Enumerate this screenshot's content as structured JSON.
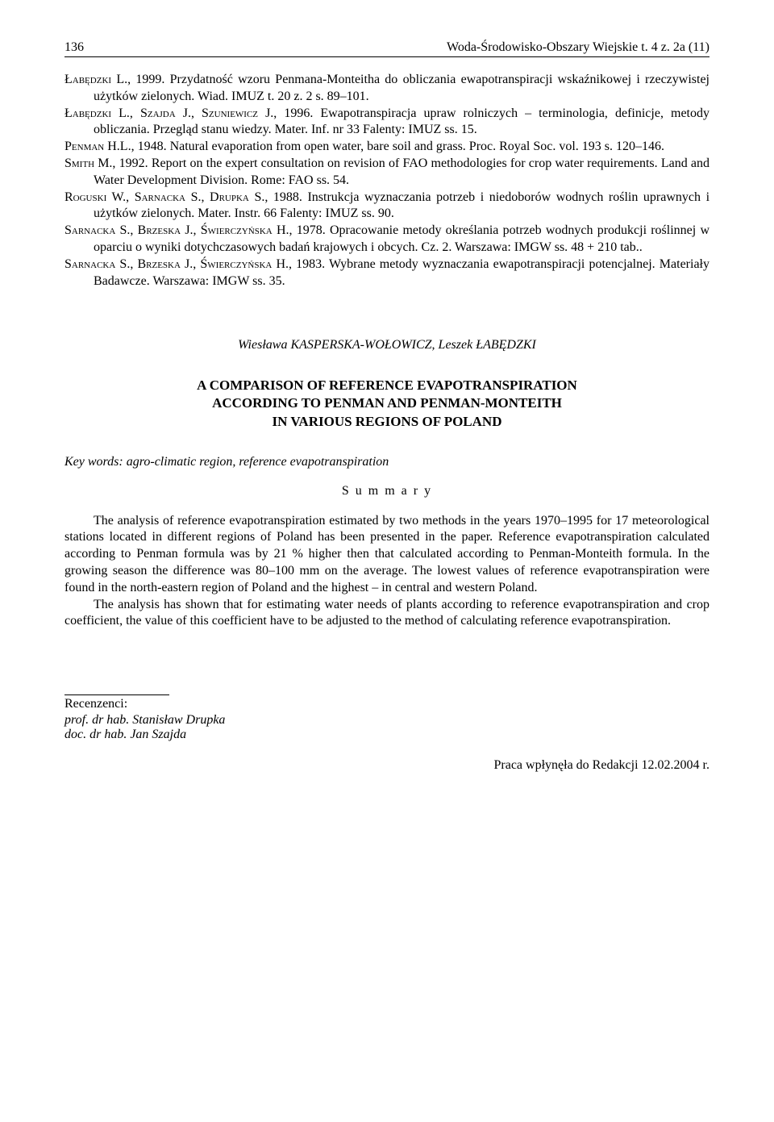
{
  "header": {
    "page_number": "136",
    "running_title": "Woda-Środowisko-Obszary Wiejskie t. 4 z. 2a (11)"
  },
  "references": [
    {
      "html": "Ł<span class='sc'>abędzki</span> L., 1999. Przydatność wzoru Penmana-Monteitha do obliczania ewapotranspiracji wskaźnikowej i rzeczywistej użytków zielonych. Wiad. IMUZ t. 20 z. 2 s. 89–101."
    },
    {
      "html": "Ł<span class='sc'>abędzki</span> L., S<span class='sc'>zajda</span> J., S<span class='sc'>zuniewicz</span> J., 1996. Ewapotranspiracja upraw rolniczych – terminologia, definicje, metody obliczania. Przegląd stanu wiedzy. Mater. Inf. nr 33 Falenty: IMUZ ss. 15."
    },
    {
      "html": "P<span class='sc'>enman</span> H.L., 1948. Natural evaporation from open water, bare soil and grass. Proc. Royal Soc. vol. 193 s. 120–146."
    },
    {
      "html": "S<span class='sc'>mith</span> M., 1992. Report on the expert consultation on revision of FAO methodologies for crop water requirements. Land and Water Development Division. Rome: FAO ss. 54."
    },
    {
      "html": "R<span class='sc'>oguski</span> W., S<span class='sc'>arnacka</span> S., D<span class='sc'>rupka</span> S., 1988. Instrukcja wyznaczania potrzeb i niedoborów wodnych roślin uprawnych i użytków zielonych. Mater. Instr. 66 Falenty: IMUZ ss. 90."
    },
    {
      "html": "S<span class='sc'>arnacka</span> S., B<span class='sc'>rzeska</span> J., Ś<span class='sc'>wierczyńska</span> H., 1978. Opracowanie metody określania potrzeb wodnych produkcji roślinnej w oparciu o wyniki dotychczasowych badań krajowych i obcych. Cz. 2. Warszawa: IMGW ss. 48 + 210 tab.."
    },
    {
      "html": "S<span class='sc'>arnacka</span> S., B<span class='sc'>rzeska</span> J., Ś<span class='sc'>wierczyńska</span> H., 1983. Wybrane metody wyznaczania ewapotranspiracji potencjalnej. Materiały Badawcze. Warszawa: IMGW ss. 35."
    }
  ],
  "article": {
    "authors": "Wiesława KASPERSKA-WOŁOWICZ, Leszek ŁABĘDZKI",
    "title_lines": [
      "A COMPARISON OF REFERENCE EVAPOTRANSPIRATION",
      "ACCORDING TO PENMAN AND PENMAN-MONTEITH",
      "IN VARIOUS REGIONS OF POLAND"
    ],
    "keywords_label": "Key words:",
    "keywords_text": " agro-climatic region, reference evapotranspiration",
    "summary_label": "S u m m a r y",
    "summary_paragraphs": [
      "The analysis of reference evapotranspiration estimated by two methods in the years 1970–1995 for 17 meteorological stations located in different regions of Poland has been presented in the paper. Reference evapotranspiration calculated according to Penman formula was by 21 % higher then that calculated according to Penman-Monteith formula. In the growing season the difference was 80–100 mm on the average. The lowest values of reference evapotranspiration were found in the north-eastern region of Poland and the highest – in central and western Poland.",
      "The analysis has shown that for estimating water needs of plants according to reference evapotranspiration and crop coefficient, the value of this coefficient have to be adjusted to the method of calculating reference evapotranspiration."
    ]
  },
  "footer": {
    "reviewers_label": "Recenzenci:",
    "reviewers": [
      "prof. dr hab. Stanisław Drupka",
      "doc. dr hab. Jan Szajda"
    ],
    "submission": "Praca wpłynęła do Redakcji 12.02.2004 r."
  }
}
